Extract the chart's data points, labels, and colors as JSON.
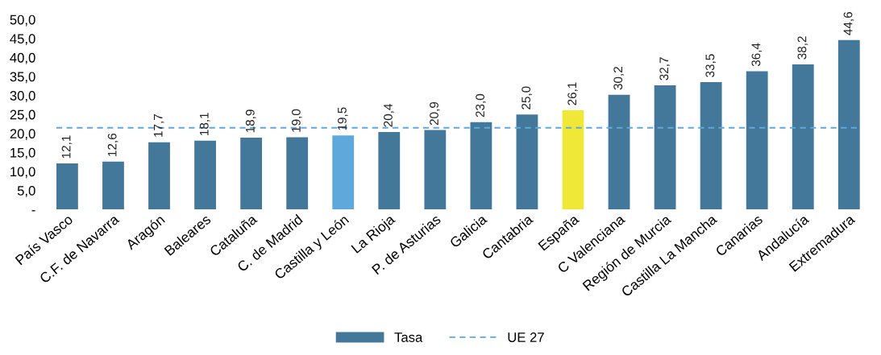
{
  "chart_data": {
    "type": "bar",
    "categories": [
      "País Vasco",
      "C.F. de Navarra",
      "Aragón",
      "Baleares",
      "Cataluña",
      "C. de Madrid",
      "Castilla y León",
      "La Rioja",
      "P. de Asturias",
      "Galicia",
      "Cantabria",
      "España",
      "C Valenciana",
      "Región de Murcia",
      "Castilla La Mancha",
      "Canarias",
      "Andalucía",
      "Extremadura"
    ],
    "series": [
      {
        "name": "Tasa",
        "color": "#44789a",
        "colors": [
          "#44789a",
          "#44789a",
          "#44789a",
          "#44789a",
          "#44789a",
          "#44789a",
          "#5fa8dc",
          "#44789a",
          "#44789a",
          "#44789a",
          "#44789a",
          "#f0e837",
          "#44789a",
          "#44789a",
          "#44789a",
          "#44789a",
          "#44789a",
          "#44789a"
        ],
        "values": [
          12.1,
          12.6,
          17.7,
          18.1,
          18.9,
          19.0,
          19.5,
          20.4,
          20.9,
          23.0,
          25.0,
          26.1,
          30.2,
          32.7,
          33.5,
          36.4,
          38.2,
          44.6
        ],
        "value_labels": [
          "12,1",
          "12,6",
          "17,7",
          "18,1",
          "18,9",
          "19,0",
          "19,5",
          "20,4",
          "20,9",
          "23,0",
          "25,0",
          "26,1",
          "30,2",
          "32,7",
          "33,5",
          "36,4",
          "38,2",
          "44,6"
        ]
      }
    ],
    "ref_lines": [
      {
        "axis": "y",
        "value": 21.5,
        "label": "UE 27",
        "color": "#5fa8dc",
        "line_style": "dashed"
      }
    ],
    "ylim": [
      0,
      50
    ],
    "yticks": [
      {
        "value": 0,
        "label": "-"
      },
      {
        "value": 5,
        "label": "5,0"
      },
      {
        "value": 10,
        "label": "10,0"
      },
      {
        "value": 15,
        "label": "15,0"
      },
      {
        "value": 20,
        "label": "20,0"
      },
      {
        "value": 25,
        "label": "25,0"
      },
      {
        "value": 30,
        "label": "30,0"
      },
      {
        "value": 35,
        "label": "35,0"
      },
      {
        "value": 40,
        "label": "40,0"
      },
      {
        "value": 45,
        "label": "45,0"
      },
      {
        "value": 50,
        "label": "50,0"
      }
    ],
    "grid": false,
    "legend": "bottom"
  }
}
